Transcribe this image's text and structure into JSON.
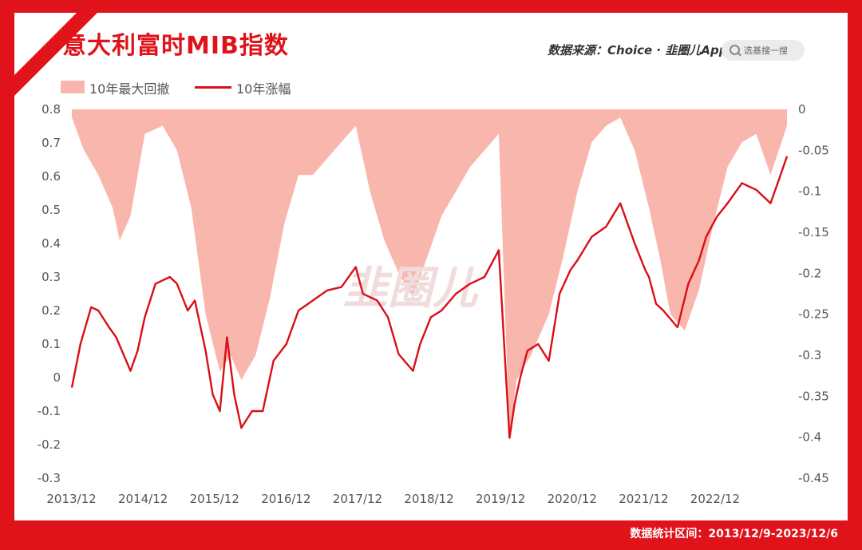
{
  "title": "意大利富时MIB指数",
  "source_text": "数据来源：Choice · 韭圈儿App",
  "search": {
    "placeholder": "选基搜一搜"
  },
  "footer": "数据统计区间：2013/12/9-2023/12/6",
  "watermark": "韭圈儿",
  "colors": {
    "accent": "#e0121a",
    "line": "#d90f16",
    "area": "#f8b6ad"
  },
  "chart_data": {
    "type": "line+area",
    "title": "意大利富时MIB指数",
    "legend": [
      "10年最大回撤",
      "10年涨幅"
    ],
    "legend_position": "top-left",
    "grid": false,
    "x_ticks": [
      "2013/12",
      "2014/12",
      "2015/12",
      "2016/12",
      "2017/12",
      "2018/12",
      "2019/12",
      "2020/12",
      "2021/12",
      "2022/12"
    ],
    "x_range": [
      2013.93,
      2023.93
    ],
    "y_left": {
      "range": [
        -0.3,
        0.8
      ],
      "ticks": [
        "0.8",
        "0.7",
        "0.6",
        "0.5",
        "0.4",
        "0.3",
        "0.2",
        "0.1",
        "0",
        "-0.1",
        "-0.2",
        "-0.3"
      ],
      "tick_values": [
        0.8,
        0.7,
        0.6,
        0.5,
        0.4,
        0.3,
        0.2,
        0.1,
        0,
        -0.1,
        -0.2,
        -0.3
      ]
    },
    "y_right": {
      "range": [
        -0.45,
        0
      ],
      "ticks": [
        "0",
        "-0.05",
        "-0.1",
        "-0.15",
        "-0.2",
        "-0.25",
        "-0.3",
        "-0.35",
        "-0.4",
        "-0.45"
      ],
      "tick_values": [
        0,
        -0.05,
        -0.1,
        -0.15,
        -0.2,
        -0.25,
        -0.3,
        -0.35,
        -0.4,
        -0.45
      ]
    },
    "series": [
      {
        "name": "10年涨幅",
        "axis": "left",
        "x": [
          2013.93,
          2014.05,
          2014.2,
          2014.3,
          2014.45,
          2014.55,
          2014.75,
          2014.85,
          2014.95,
          2015.1,
          2015.3,
          2015.4,
          2015.55,
          2015.65,
          2015.8,
          2015.9,
          2016.0,
          2016.1,
          2016.2,
          2016.3,
          2016.45,
          2016.6,
          2016.75,
          2016.93,
          2017.1,
          2017.3,
          2017.5,
          2017.7,
          2017.9,
          2018.0,
          2018.2,
          2018.35,
          2018.5,
          2018.7,
          2018.8,
          2018.95,
          2019.1,
          2019.3,
          2019.5,
          2019.7,
          2019.9,
          2020.05,
          2020.12,
          2020.2,
          2020.3,
          2020.45,
          2020.6,
          2020.75,
          2020.9,
          2021.0,
          2021.2,
          2021.4,
          2021.6,
          2021.8,
          2021.95,
          2022.0,
          2022.1,
          2022.2,
          2022.4,
          2022.55,
          2022.7,
          2022.8,
          2022.95,
          2023.1,
          2023.3,
          2023.5,
          2023.7,
          2023.8,
          2023.93
        ],
        "y": [
          -0.03,
          0.1,
          0.21,
          0.2,
          0.15,
          0.12,
          0.02,
          0.08,
          0.18,
          0.28,
          0.3,
          0.28,
          0.2,
          0.23,
          0.08,
          -0.05,
          -0.1,
          0.12,
          -0.05,
          -0.15,
          -0.1,
          -0.1,
          0.05,
          0.1,
          0.2,
          0.23,
          0.26,
          0.27,
          0.33,
          0.25,
          0.23,
          0.18,
          0.07,
          0.02,
          0.1,
          0.18,
          0.2,
          0.25,
          0.28,
          0.3,
          0.38,
          -0.18,
          -0.08,
          0.0,
          0.08,
          0.1,
          0.05,
          0.25,
          0.32,
          0.35,
          0.42,
          0.45,
          0.52,
          0.4,
          0.32,
          0.3,
          0.22,
          0.2,
          0.15,
          0.28,
          0.35,
          0.42,
          0.48,
          0.52,
          0.58,
          0.56,
          0.52,
          0.58,
          0.66
        ]
      },
      {
        "name": "10年最大回撤",
        "axis": "right",
        "x": [
          2013.93,
          2014.1,
          2014.3,
          2014.5,
          2014.6,
          2014.75,
          2014.95,
          2015.2,
          2015.4,
          2015.6,
          2015.8,
          2016.0,
          2016.15,
          2016.3,
          2016.5,
          2016.7,
          2016.9,
          2017.1,
          2017.3,
          2017.6,
          2017.9,
          2018.1,
          2018.3,
          2018.5,
          2018.7,
          2018.9,
          2019.1,
          2019.3,
          2019.5,
          2019.7,
          2019.9,
          2020.05,
          2020.15,
          2020.35,
          2020.6,
          2020.8,
          2021.0,
          2021.2,
          2021.4,
          2021.6,
          2021.8,
          2022.0,
          2022.15,
          2022.3,
          2022.5,
          2022.7,
          2022.9,
          2023.1,
          2023.3,
          2023.5,
          2023.7,
          2023.93
        ],
        "y": [
          -0.01,
          -0.05,
          -0.08,
          -0.12,
          -0.16,
          -0.13,
          -0.03,
          -0.02,
          -0.05,
          -0.12,
          -0.25,
          -0.32,
          -0.3,
          -0.33,
          -0.3,
          -0.23,
          -0.14,
          -0.08,
          -0.08,
          -0.05,
          -0.02,
          -0.1,
          -0.16,
          -0.2,
          -0.23,
          -0.18,
          -0.13,
          -0.1,
          -0.07,
          -0.05,
          -0.03,
          -0.4,
          -0.33,
          -0.3,
          -0.25,
          -0.18,
          -0.1,
          -0.04,
          -0.02,
          -0.01,
          -0.05,
          -0.12,
          -0.18,
          -0.25,
          -0.27,
          -0.22,
          -0.14,
          -0.07,
          -0.04,
          -0.03,
          -0.08,
          -0.02
        ]
      }
    ]
  }
}
